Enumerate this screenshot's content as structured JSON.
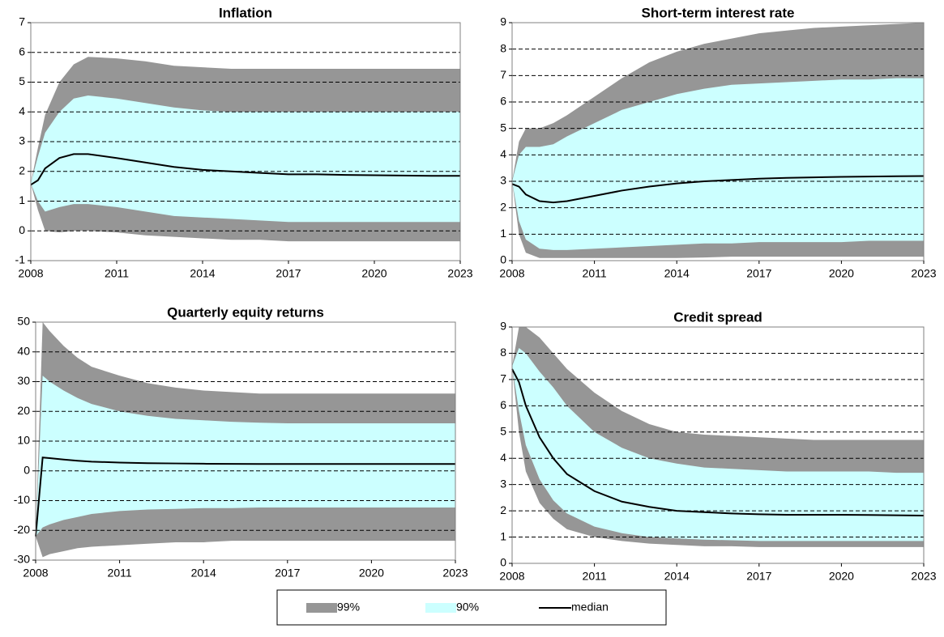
{
  "chart_data": [
    {
      "type": "fan",
      "title": "Inflation",
      "x": [
        2008,
        2008.25,
        2008.5,
        2009,
        2009.5,
        2010,
        2011,
        2012,
        2013,
        2014,
        2015,
        2016,
        2017,
        2018,
        2019,
        2020,
        2021,
        2022,
        2023
      ],
      "bands": [
        {
          "upper": [
            1.6,
            2.8,
            3.9,
            5.0,
            5.6,
            5.85,
            5.8,
            5.7,
            5.55,
            5.5,
            5.45,
            5.45,
            5.45,
            5.45,
            5.45,
            5.45,
            5.45,
            5.45,
            5.45
          ],
          "lower": [
            1.6,
            0.7,
            0.0,
            -0.05,
            0,
            0,
            -0.05,
            -0.15,
            -0.2,
            -0.25,
            -0.3,
            -0.3,
            -0.35,
            -0.35,
            -0.35,
            -0.35,
            -0.35,
            -0.35,
            -0.35
          ]
        },
        {
          "upper": [
            1.6,
            2.5,
            3.3,
            4.0,
            4.45,
            4.55,
            4.45,
            4.3,
            4.15,
            4.05,
            4.0,
            4.0,
            4.0,
            4.0,
            4.0,
            4.0,
            4.0,
            4.0,
            4.0
          ],
          "lower": [
            1.6,
            1.0,
            0.65,
            0.8,
            0.9,
            0.9,
            0.8,
            0.65,
            0.5,
            0.45,
            0.4,
            0.35,
            0.3,
            0.3,
            0.3,
            0.3,
            0.3,
            0.3,
            0.3
          ]
        }
      ],
      "median": [
        1.55,
        1.7,
        2.1,
        2.45,
        2.58,
        2.58,
        2.45,
        2.3,
        2.15,
        2.05,
        2.0,
        1.95,
        1.9,
        1.9,
        1.88,
        1.87,
        1.86,
        1.85,
        1.85
      ],
      "xlim": [
        2008,
        2023
      ],
      "xticks": [
        2008,
        2011,
        2014,
        2017,
        2020,
        2023
      ],
      "ylim": [
        -1,
        7
      ],
      "yticks": [
        -1,
        0,
        1,
        2,
        3,
        4,
        5,
        6,
        7
      ],
      "grid": true
    },
    {
      "type": "fan",
      "title": "Short-term interest rate",
      "x": [
        2008,
        2008.25,
        2008.5,
        2009,
        2009.5,
        2010,
        2011,
        2012,
        2013,
        2014,
        2015,
        2016,
        2017,
        2018,
        2019,
        2020,
        2021,
        2022,
        2023
      ],
      "bands": [
        {
          "upper": [
            3.0,
            4.5,
            5.0,
            5.0,
            5.2,
            5.5,
            6.2,
            6.9,
            7.5,
            7.9,
            8.2,
            8.4,
            8.6,
            8.7,
            8.8,
            8.85,
            8.9,
            8.95,
            9.0
          ],
          "lower": [
            3.0,
            1.0,
            0.3,
            0.1,
            0.1,
            0.1,
            0.1,
            0.1,
            0.1,
            0.1,
            0.12,
            0.15,
            0.15,
            0.15,
            0.15,
            0.15,
            0.15,
            0.15,
            0.15
          ]
        },
        {
          "upper": [
            3.0,
            4.0,
            4.3,
            4.3,
            4.4,
            4.7,
            5.2,
            5.7,
            6.0,
            6.3,
            6.5,
            6.65,
            6.7,
            6.75,
            6.8,
            6.85,
            6.85,
            6.9,
            6.9
          ],
          "lower": [
            3.0,
            1.5,
            0.8,
            0.45,
            0.4,
            0.4,
            0.45,
            0.5,
            0.55,
            0.6,
            0.65,
            0.65,
            0.7,
            0.7,
            0.7,
            0.7,
            0.75,
            0.75,
            0.75
          ]
        }
      ],
      "median": [
        2.9,
        2.8,
        2.5,
        2.25,
        2.2,
        2.25,
        2.45,
        2.65,
        2.8,
        2.92,
        3.0,
        3.05,
        3.1,
        3.13,
        3.15,
        3.17,
        3.18,
        3.19,
        3.2
      ],
      "xlim": [
        2008,
        2023
      ],
      "xticks": [
        2008,
        2011,
        2014,
        2017,
        2020,
        2023
      ],
      "ylim": [
        0,
        9
      ],
      "yticks": [
        0,
        1,
        2,
        3,
        4,
        5,
        6,
        7,
        8,
        9
      ],
      "grid": true
    },
    {
      "type": "fan",
      "title": "Quarterly equity returns",
      "x": [
        2008,
        2008.25,
        2008.5,
        2009,
        2009.5,
        2010,
        2011,
        2012,
        2013,
        2014,
        2015,
        2016,
        2017,
        2018,
        2019,
        2020,
        2021,
        2022,
        2023
      ],
      "bands": [
        {
          "upper": [
            -22,
            50,
            47,
            42,
            38,
            35,
            32,
            29.5,
            28,
            27,
            26.5,
            26,
            26,
            26,
            26,
            26,
            26,
            26,
            26
          ],
          "lower": [
            -22,
            -29,
            -28,
            -27,
            -26,
            -25.5,
            -25,
            -24.5,
            -24,
            -24,
            -23.5,
            -23.5,
            -23.5,
            -23.5,
            -23.5,
            -23.5,
            -23.5,
            -23.5,
            -23.5
          ]
        },
        {
          "upper": [
            -22,
            32,
            30,
            27,
            24.5,
            22.5,
            20,
            18.5,
            17.5,
            17,
            16.5,
            16.2,
            16,
            16,
            16,
            16,
            16,
            16,
            16
          ],
          "lower": [
            -22,
            -19,
            -18,
            -16.5,
            -15.5,
            -14.5,
            -13.5,
            -13,
            -12.8,
            -12.5,
            -12.5,
            -12.3,
            -12.3,
            -12.3,
            -12.3,
            -12.3,
            -12.3,
            -12.3,
            -12.3
          ]
        }
      ],
      "median": [
        -22,
        4.5,
        4.3,
        3.8,
        3.4,
        3.1,
        2.8,
        2.6,
        2.5,
        2.4,
        2.35,
        2.3,
        2.3,
        2.3,
        2.3,
        2.3,
        2.3,
        2.3,
        2.3
      ],
      "xlim": [
        2008,
        2023
      ],
      "xticks": [
        2008,
        2011,
        2014,
        2017,
        2020,
        2023
      ],
      "ylim": [
        -30,
        50
      ],
      "yticks": [
        -30,
        -20,
        -10,
        0,
        10,
        20,
        30,
        40,
        50
      ],
      "grid": true
    },
    {
      "type": "fan",
      "title": "Credit spread",
      "x": [
        2008,
        2008.25,
        2008.5,
        2009,
        2009.5,
        2010,
        2011,
        2012,
        2013,
        2014,
        2015,
        2016,
        2017,
        2018,
        2019,
        2020,
        2021,
        2022,
        2023
      ],
      "bands": [
        {
          "upper": [
            7.5,
            9.0,
            9.0,
            8.6,
            8.0,
            7.4,
            6.5,
            5.8,
            5.3,
            5.0,
            4.9,
            4.85,
            4.8,
            4.75,
            4.7,
            4.7,
            4.7,
            4.7,
            4.7
          ],
          "lower": [
            7.5,
            5.0,
            3.5,
            2.3,
            1.7,
            1.3,
            1.0,
            0.85,
            0.75,
            0.7,
            0.65,
            0.65,
            0.62,
            0.62,
            0.62,
            0.62,
            0.62,
            0.62,
            0.62
          ]
        },
        {
          "upper": [
            7.5,
            8.2,
            8.0,
            7.3,
            6.7,
            6.0,
            5.0,
            4.4,
            4.0,
            3.8,
            3.65,
            3.6,
            3.55,
            3.5,
            3.5,
            3.5,
            3.5,
            3.45,
            3.45
          ],
          "lower": [
            7.5,
            5.8,
            4.5,
            3.2,
            2.4,
            1.9,
            1.4,
            1.15,
            1.0,
            0.95,
            0.9,
            0.88,
            0.85,
            0.85,
            0.85,
            0.85,
            0.85,
            0.85,
            0.85
          ]
        }
      ],
      "median": [
        7.4,
        6.9,
        6.0,
        4.8,
        4.0,
        3.4,
        2.75,
        2.35,
        2.15,
        2.0,
        1.95,
        1.9,
        1.87,
        1.85,
        1.85,
        1.85,
        1.84,
        1.83,
        1.82
      ],
      "xlim": [
        2008,
        2023
      ],
      "xticks": [
        2008,
        2011,
        2014,
        2017,
        2020,
        2023
      ],
      "ylim": [
        0,
        9
      ],
      "yticks": [
        0,
        1,
        2,
        3,
        4,
        5,
        6,
        7,
        8,
        9
      ],
      "grid": true
    }
  ],
  "legend": {
    "entries": [
      {
        "name": "99%",
        "color": "#969696"
      },
      {
        "name": "90%",
        "color": "#ccffff"
      },
      {
        "name": "median",
        "color": "#000000"
      }
    ]
  }
}
